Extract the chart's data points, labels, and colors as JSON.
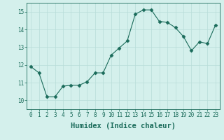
{
  "x": [
    0,
    1,
    2,
    3,
    4,
    5,
    6,
    7,
    8,
    9,
    10,
    11,
    12,
    13,
    14,
    15,
    16,
    17,
    18,
    19,
    20,
    21,
    22,
    23
  ],
  "y": [
    11.9,
    11.55,
    10.2,
    10.2,
    10.8,
    10.85,
    10.85,
    11.05,
    11.55,
    11.55,
    12.55,
    12.95,
    13.35,
    14.85,
    15.1,
    15.1,
    14.45,
    14.4,
    14.1,
    13.6,
    12.8,
    13.3,
    13.2,
    14.25
  ],
  "line_color": "#1a6b5a",
  "marker": "D",
  "marker_size": 2.5,
  "bg_color": "#d4f0ec",
  "grid_color": "#b8ddd8",
  "xlabel": "Humidex (Indice chaleur)",
  "ylim": [
    9.5,
    15.5
  ],
  "xlim": [
    -0.5,
    23.5
  ],
  "yticks": [
    10,
    11,
    12,
    13,
    14,
    15
  ],
  "xticks": [
    0,
    1,
    2,
    3,
    4,
    5,
    6,
    7,
    8,
    9,
    10,
    11,
    12,
    13,
    14,
    15,
    16,
    17,
    18,
    19,
    20,
    21,
    22,
    23
  ],
  "tick_fontsize": 5.5,
  "xlabel_fontsize": 7.5,
  "figwidth": 3.2,
  "figheight": 2.0,
  "dpi": 100
}
